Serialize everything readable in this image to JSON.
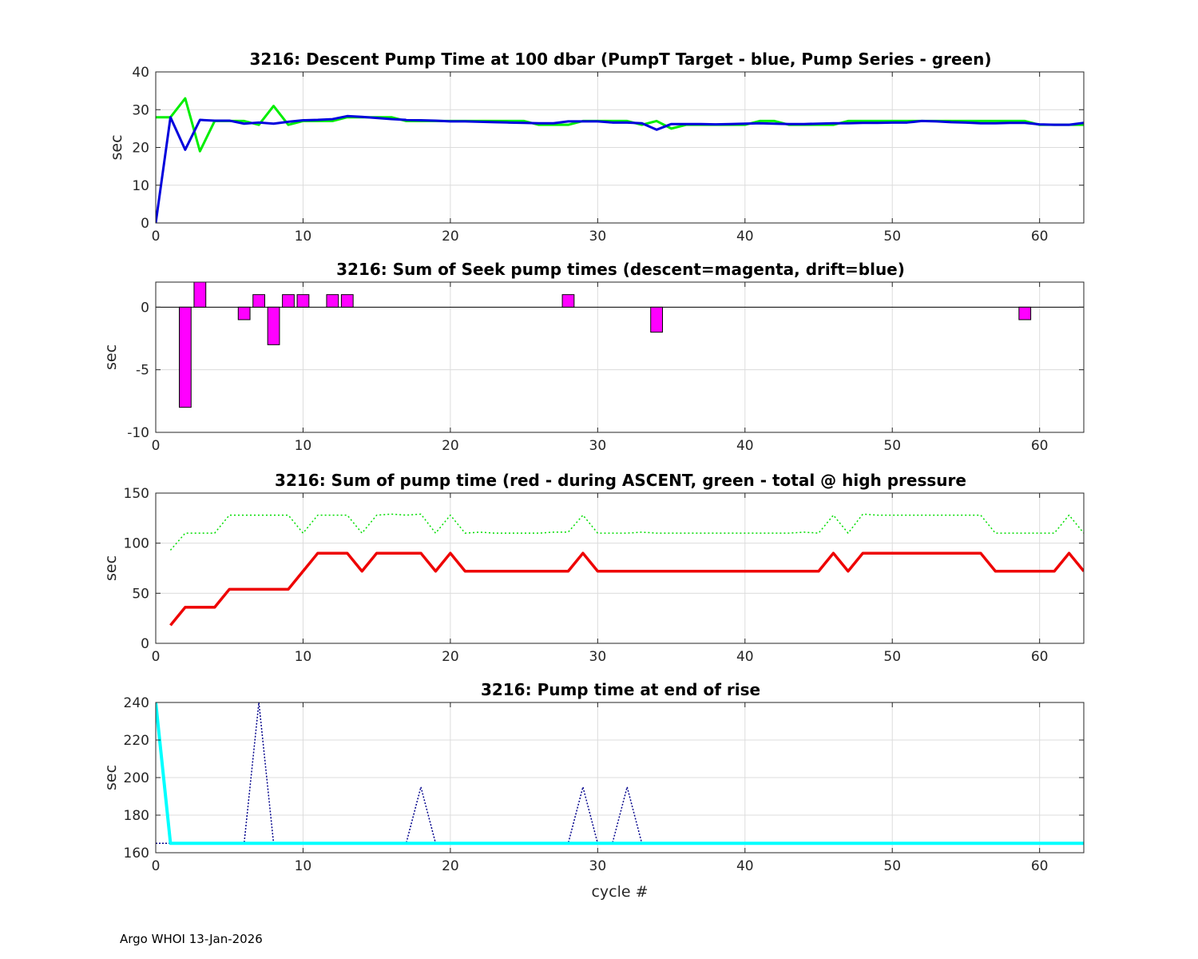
{
  "footer": "Argo WHOI 13-Jan-2026",
  "chart_data": [
    {
      "type": "line",
      "title": "3216: Descent Pump Time at 100 dbar (PumpT Target - blue, Pump Series - green)",
      "ylabel": "sec",
      "xlabel": "",
      "xlim": [
        0,
        63
      ],
      "ylim": [
        0,
        40
      ],
      "xticks": [
        0,
        10,
        20,
        30,
        40,
        50,
        60
      ],
      "yticks": [
        0,
        10,
        20,
        30,
        40
      ],
      "grid": true,
      "series": [
        {
          "color": "#00ee00",
          "width": 3,
          "dash": "",
          "x": [
            0,
            1,
            2,
            3,
            4,
            5,
            6,
            7,
            8,
            9,
            10,
            11,
            12,
            13,
            14,
            15,
            16,
            17,
            18,
            19,
            20,
            21,
            22,
            23,
            24,
            25,
            26,
            27,
            28,
            29,
            30,
            31,
            32,
            33,
            34,
            35,
            36,
            37,
            38,
            39,
            40,
            41,
            42,
            43,
            44,
            45,
            46,
            47,
            48,
            49,
            50,
            51,
            52,
            53,
            54,
            55,
            56,
            57,
            58,
            59,
            60,
            61,
            62,
            63
          ],
          "y": [
            28,
            28,
            33,
            19,
            27,
            27,
            27,
            26,
            31,
            26,
            27,
            27,
            27,
            28,
            28,
            28,
            28,
            27,
            27,
            27,
            27,
            27,
            27,
            27,
            27,
            27,
            26,
            26,
            26,
            27,
            27,
            27,
            27,
            26,
            27,
            25,
            26,
            26,
            26,
            26,
            26,
            27,
            27,
            26,
            26,
            26,
            26,
            27,
            27,
            27,
            27,
            27,
            27,
            27,
            27,
            27,
            27,
            27,
            27,
            27,
            26,
            26,
            26,
            26
          ]
        },
        {
          "color": "#0000dd",
          "width": 3,
          "dash": "",
          "x": [
            0,
            1,
            2,
            3,
            4,
            5,
            6,
            7,
            8,
            9,
            10,
            11,
            12,
            13,
            14,
            15,
            16,
            17,
            18,
            19,
            20,
            21,
            22,
            23,
            24,
            25,
            26,
            27,
            28,
            29,
            30,
            31,
            32,
            33,
            34,
            35,
            36,
            37,
            38,
            39,
            40,
            41,
            42,
            43,
            44,
            45,
            46,
            47,
            48,
            49,
            50,
            51,
            52,
            53,
            54,
            55,
            56,
            57,
            58,
            59,
            60,
            61,
            62,
            63
          ],
          "y": [
            0,
            28,
            19.4,
            27.3,
            27.1,
            27.1,
            26.3,
            26.6,
            26.3,
            26.8,
            27.2,
            27.3,
            27.5,
            28.3,
            28.1,
            27.8,
            27.5,
            27.3,
            27.2,
            27.1,
            26.9,
            26.9,
            26.8,
            26.7,
            26.6,
            26.5,
            26.4,
            26.4,
            26.9,
            26.9,
            26.9,
            26.6,
            26.6,
            26.4,
            24.7,
            26.2,
            26.2,
            26.2,
            26.1,
            26.2,
            26.3,
            26.4,
            26.3,
            26.2,
            26.2,
            26.3,
            26.4,
            26.4,
            26.5,
            26.5,
            26.6,
            26.6,
            27,
            26.9,
            26.7,
            26.6,
            26.4,
            26.4,
            26.5,
            26.5,
            26.1,
            26,
            26,
            26.5
          ]
        }
      ]
    },
    {
      "type": "bar",
      "title": "3216: Sum of Seek pump times (descent=magenta, drift=blue)",
      "ylabel": "sec",
      "xlabel": "",
      "xlim": [
        0,
        63
      ],
      "ylim": [
        -10,
        2
      ],
      "xticks": [
        0,
        10,
        20,
        30,
        40,
        50,
        60
      ],
      "yticks": [
        -10,
        -5,
        0
      ],
      "grid": true,
      "bar_color": "#ff00ff",
      "bar_width": 0.8,
      "x": [
        2,
        3,
        6,
        7,
        8,
        9,
        10,
        12,
        13,
        28,
        34,
        59
      ],
      "values": [
        -8,
        2,
        -1,
        1,
        -3,
        1,
        1,
        1,
        1,
        1,
        -2,
        -1
      ]
    },
    {
      "type": "line",
      "title": "3216: Sum of pump time (red - during ASCENT, green - total @ high pressure",
      "ylabel": "sec",
      "xlabel": "",
      "xlim": [
        0,
        63
      ],
      "ylim": [
        0,
        150
      ],
      "xticks": [
        0,
        10,
        20,
        30,
        40,
        50,
        60
      ],
      "yticks": [
        0,
        50,
        100,
        150
      ],
      "grid": true,
      "series": [
        {
          "color": "#00dd00",
          "width": 1.5,
          "dash": "2,3",
          "x": [
            1,
            2,
            3,
            4,
            5,
            6,
            7,
            8,
            9,
            10,
            11,
            12,
            13,
            14,
            15,
            16,
            17,
            18,
            19,
            20,
            21,
            22,
            23,
            24,
            25,
            26,
            27,
            28,
            29,
            30,
            31,
            32,
            33,
            34,
            35,
            36,
            37,
            38,
            39,
            40,
            41,
            42,
            43,
            44,
            45,
            46,
            47,
            48,
            49,
            50,
            51,
            52,
            53,
            54,
            55,
            56,
            57,
            58,
            59,
            60,
            61,
            62,
            63
          ],
          "y": [
            93,
            110,
            110,
            110,
            128,
            128,
            128,
            128,
            128,
            110,
            128,
            128,
            128,
            110,
            128,
            129,
            128,
            129,
            110,
            128,
            110,
            111,
            110,
            110,
            110,
            110,
            111,
            111,
            128,
            110,
            110,
            110,
            111,
            110,
            110,
            110,
            110,
            110,
            110,
            110,
            110,
            110,
            110,
            111,
            110,
            128,
            110,
            129,
            128,
            128,
            128,
            128,
            128,
            128,
            128,
            128,
            110,
            110,
            110,
            110,
            110,
            128,
            110
          ]
        },
        {
          "color": "#ee0000",
          "width": 3.5,
          "dash": "",
          "x": [
            1,
            2,
            3,
            4,
            5,
            6,
            7,
            8,
            9,
            10,
            11,
            12,
            13,
            14,
            15,
            16,
            17,
            18,
            19,
            20,
            21,
            22,
            23,
            24,
            25,
            26,
            27,
            28,
            29,
            30,
            31,
            32,
            33,
            34,
            35,
            36,
            37,
            38,
            39,
            40,
            41,
            42,
            43,
            44,
            45,
            46,
            47,
            48,
            49,
            50,
            51,
            52,
            53,
            54,
            55,
            56,
            57,
            58,
            59,
            60,
            61,
            62,
            63
          ],
          "y": [
            18,
            36,
            36,
            36,
            54,
            54,
            54,
            54,
            54,
            72,
            90,
            90,
            90,
            72,
            90,
            90,
            90,
            90,
            72,
            90,
            72,
            72,
            72,
            72,
            72,
            72,
            72,
            72,
            90,
            72,
            72,
            72,
            72,
            72,
            72,
            72,
            72,
            72,
            72,
            72,
            72,
            72,
            72,
            72,
            72,
            90,
            72,
            90,
            90,
            90,
            90,
            90,
            90,
            90,
            90,
            90,
            72,
            72,
            72,
            72,
            72,
            90,
            72
          ]
        }
      ]
    },
    {
      "type": "line",
      "title": "3216: Pump time at end of rise",
      "ylabel": "sec",
      "xlabel": "cycle #",
      "xlim": [
        0,
        63
      ],
      "ylim": [
        160,
        240
      ],
      "xticks": [
        0,
        10,
        20,
        30,
        40,
        50,
        60
      ],
      "yticks": [
        160,
        180,
        200,
        220,
        240
      ],
      "grid": true,
      "series": [
        {
          "color": "#00008b",
          "width": 1.5,
          "dash": "2,2",
          "x": [
            0,
            1,
            2,
            3,
            4,
            5,
            6,
            7,
            8,
            9,
            10,
            11,
            12,
            13,
            14,
            15,
            16,
            17,
            18,
            19,
            20,
            21,
            22,
            23,
            24,
            25,
            26,
            27,
            28,
            29,
            30,
            31,
            32,
            33,
            34,
            35,
            36,
            37,
            38,
            39,
            40,
            41,
            42,
            43,
            44,
            45,
            46,
            47,
            48,
            49,
            50,
            51,
            52,
            53,
            54,
            55,
            56,
            57,
            58,
            59,
            60,
            61,
            62,
            63
          ],
          "y": [
            165,
            165,
            165,
            165,
            165,
            165,
            165,
            240,
            165,
            165,
            165,
            165,
            165,
            165,
            165,
            165,
            165,
            165,
            195,
            165,
            165,
            165,
            165,
            165,
            165,
            165,
            165,
            165,
            165,
            195,
            165,
            165,
            195,
            165,
            165,
            165,
            165,
            165,
            165,
            165,
            165,
            165,
            165,
            165,
            165,
            165,
            165,
            165,
            165,
            165,
            165,
            165,
            165,
            165,
            165,
            165,
            165,
            165,
            165,
            165,
            165,
            165,
            165,
            165
          ]
        },
        {
          "color": "#00ffff",
          "width": 4,
          "dash": "",
          "x": [
            0,
            1,
            63
          ],
          "y": [
            240,
            165,
            165
          ]
        }
      ]
    }
  ]
}
